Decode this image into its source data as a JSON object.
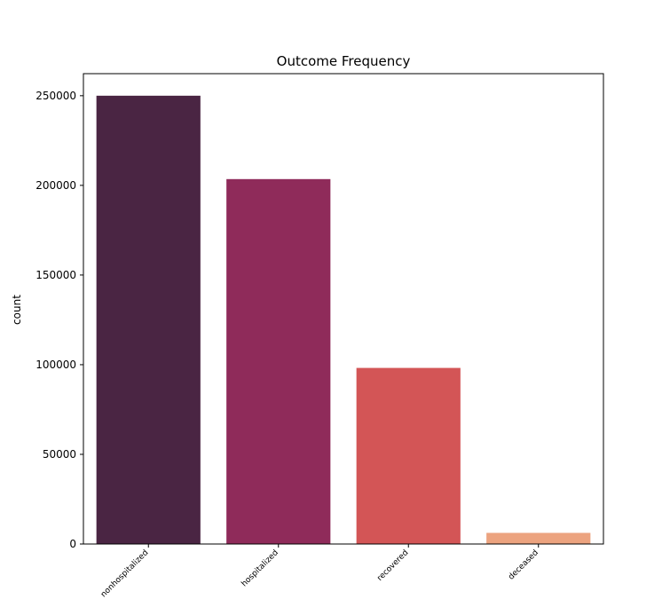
{
  "chart_data": {
    "type": "bar",
    "title": "Outcome Frequency",
    "xlabel": "",
    "ylabel": "count",
    "categories": [
      "nonhospitalized",
      "hospitalized",
      "recovered",
      "deceased"
    ],
    "values": [
      250000,
      203500,
      98200,
      6200
    ],
    "colors": [
      "#4a2543",
      "#8f2b5a",
      "#d35556",
      "#eca37f"
    ],
    "ylim": [
      0,
      262300
    ],
    "yticks": [
      0,
      50000,
      100000,
      150000,
      200000,
      250000
    ],
    "ytick_labels": [
      "0",
      "50000",
      "100000",
      "150000",
      "200000",
      "250000"
    ],
    "grid": false,
    "legend": "none"
  }
}
